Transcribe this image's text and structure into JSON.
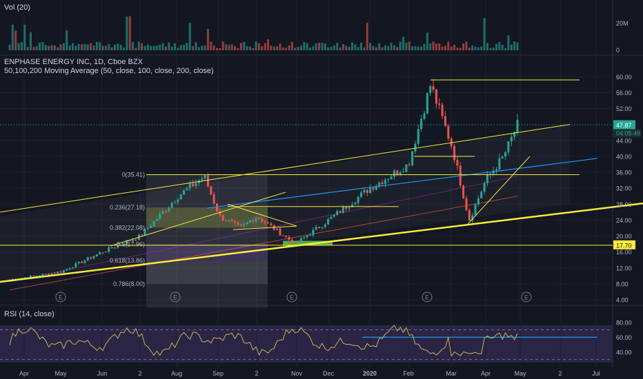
{
  "volume_pane": {
    "title": "Vol (20)",
    "axis_labels": [
      "20M",
      "0"
    ]
  },
  "main_pane": {
    "title": "ENPHASE ENERGY INC, 1D, Cboe BZX",
    "indicator": "50,100,200 Moving Average (50, close, 100, close, 200, close)",
    "price_labels": [
      "60.00",
      "56.00",
      "52.00",
      "48.00",
      "44.00",
      "40.00",
      "36.00",
      "32.00",
      "28.00",
      "24.00",
      "20.00",
      "16.00",
      "12.00",
      "8.00",
      "4.00"
    ],
    "current_price": "47.87",
    "countdown": "04:05:49",
    "line_price": "17.70",
    "fib_labels": [
      "0(35.41)",
      "0.236(27.18)",
      "0.382(22.08)",
      "0.5(17.96)",
      "0.618(13.86)",
      "0.786(8.00)"
    ],
    "earnings_marker": "E"
  },
  "rsi_pane": {
    "title": "RSI (14, close)",
    "axis_labels": [
      "80.00",
      "60.00",
      "40.00"
    ]
  },
  "time_axis": [
    "Apr",
    "May",
    "Jun",
    "2",
    "Aug",
    "Sep",
    "2",
    "Nov",
    "Dec",
    "2020",
    "Feb",
    "Mar",
    "Apr",
    "May",
    "2",
    "Jul"
  ],
  "colors": {
    "background": "#131722",
    "up": "#26a69a",
    "down": "#ef5350",
    "trendline": "#ffeb3b",
    "ma_blue": "#2196f3",
    "rsi": "#c9b458"
  },
  "chart_data": {
    "type": "candlestick",
    "symbol": "ENPHASE ENERGY INC",
    "interval": "1D",
    "y_axis": {
      "min": 4,
      "max": 62,
      "ticks": [
        60,
        56,
        52,
        48,
        44,
        40,
        36,
        32,
        28,
        24,
        20,
        16,
        12,
        8,
        4
      ]
    },
    "x_axis": [
      "Apr",
      "May",
      "Jun",
      "2",
      "Aug",
      "Sep",
      "2",
      "Nov",
      "Dec",
      "2020",
      "Feb",
      "Mar",
      "Apr",
      "May",
      "2",
      "Jul"
    ],
    "approx_close_path": [
      {
        "x": "Apr",
        "y": 9
      },
      {
        "x": "May",
        "y": 11
      },
      {
        "x": "Jun",
        "y": 16
      },
      {
        "x": "2",
        "y": 20
      },
      {
        "x": "Aug",
        "y": 30
      },
      {
        "x": "Aug",
        "y": 35
      },
      {
        "x": "Sep",
        "y": 25
      },
      {
        "x": "Sep",
        "y": 22
      },
      {
        "x": "2",
        "y": 25
      },
      {
        "x": "Nov",
        "y": 18
      },
      {
        "x": "Dec",
        "y": 24
      },
      {
        "x": "2020",
        "y": 32
      },
      {
        "x": "Feb",
        "y": 38
      },
      {
        "x": "Feb",
        "y": 58
      },
      {
        "x": "Mar",
        "y": 42
      },
      {
        "x": "Mar",
        "y": 24
      },
      {
        "x": "Apr",
        "y": 34
      },
      {
        "x": "Apr",
        "y": 40
      },
      {
        "x": "May",
        "y": 47.87
      }
    ],
    "current_price": 47.87,
    "horizontal_lines": [
      17.7,
      35.41,
      59.2
    ],
    "fibonacci": [
      {
        "level": 0,
        "price": 35.41
      },
      {
        "level": 0.236,
        "price": 27.18
      },
      {
        "level": 0.382,
        "price": 22.08
      },
      {
        "level": 0.5,
        "price": 17.96
      },
      {
        "level": 0.618,
        "price": 13.86
      },
      {
        "level": 0.786,
        "price": 8.0
      }
    ],
    "rsi": {
      "levels": [
        70,
        30
      ],
      "ticks": [
        80,
        60,
        40
      ],
      "last": 65
    },
    "volume": {
      "ticks": [
        "20M",
        "0"
      ]
    }
  }
}
